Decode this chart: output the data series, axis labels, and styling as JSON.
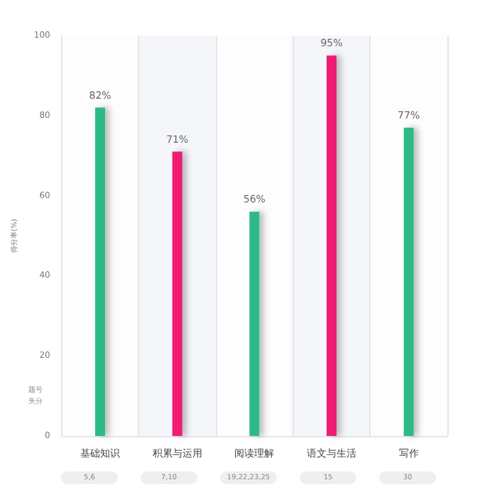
{
  "chart_data": {
    "type": "bar",
    "ylabel": "得分率(%)",
    "categories": [
      "基础知识",
      "积累与运用",
      "阅读理解",
      "语文与生活",
      "写作"
    ],
    "values": [
      82,
      71,
      56,
      95,
      77
    ],
    "colors": [
      "#2dba87",
      "#ee1e73",
      "#2dba87",
      "#ee1e73",
      "#2dba87"
    ],
    "value_labels": [
      "82%",
      "71%",
      "56%",
      "95%",
      "77%"
    ],
    "ylim": [
      0,
      100
    ],
    "yticks": [
      0,
      20,
      40,
      60,
      80,
      100
    ],
    "grid": true,
    "annotations": [
      "题号",
      "失分",
      "5,6",
      "7,10",
      "19,22,23,25",
      "15",
      "30"
    ]
  }
}
